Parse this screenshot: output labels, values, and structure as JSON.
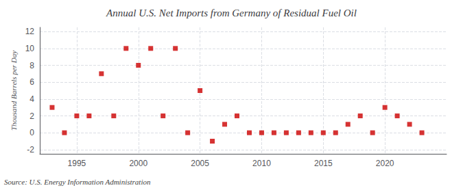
{
  "chart_data": {
    "type": "scatter",
    "title": "Annual U.S. Net Imports from Germany of Residual Fuel Oil",
    "ylabel": "Thousand Barrels per Day",
    "annotations": [
      "Source: U.S. Energy Information Administration"
    ],
    "x": [
      1993,
      1994,
      1995,
      1996,
      1997,
      1998,
      1999,
      2000,
      2001,
      2002,
      2003,
      2004,
      2005,
      2006,
      2007,
      2008,
      2009,
      2010,
      2011,
      2012,
      2013,
      2014,
      2015,
      2016,
      2017,
      2018,
      2019,
      2020,
      2021,
      2022,
      2023
    ],
    "values": [
      3,
      0,
      2,
      2,
      7,
      2,
      10,
      8,
      10,
      2,
      10,
      0,
      5,
      -1,
      1,
      2,
      0,
      0,
      0,
      0,
      0,
      0,
      0,
      0,
      1,
      2,
      0,
      3,
      2,
      1,
      0
    ],
    "color": "#cc0000",
    "marker": "square",
    "xlim": [
      1992,
      2025
    ],
    "xticks": [
      1995,
      2000,
      2005,
      2010,
      2015,
      2020
    ],
    "ylim": [
      -2.5,
      12.5
    ],
    "yticks": [
      -2,
      0,
      2,
      4,
      6,
      8,
      10,
      12
    ],
    "grid": true
  }
}
